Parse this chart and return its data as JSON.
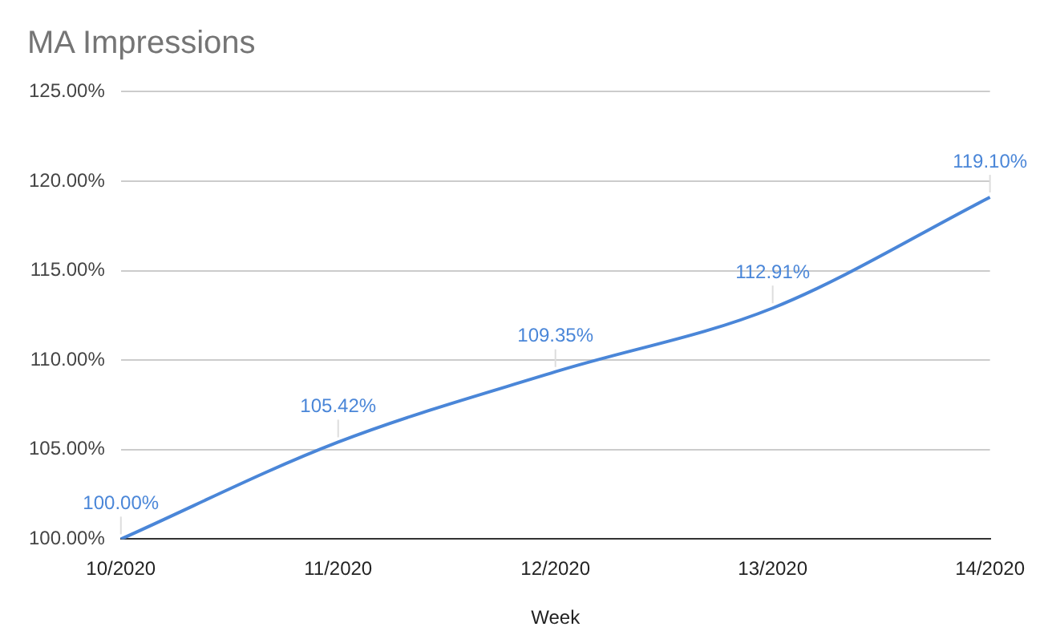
{
  "chart_data": {
    "type": "line",
    "title": "MA Impressions",
    "xlabel": "Week",
    "categories": [
      "10/2020",
      "11/2020",
      "12/2020",
      "13/2020",
      "14/2020"
    ],
    "series": [
      {
        "color": "#4a86d8",
        "values": [
          100,
          105.42,
          109.35,
          112.91,
          119.1
        ],
        "value_labels": [
          "100.00%",
          "105.42%",
          "109.35%",
          "112.91%",
          "119.10%"
        ]
      }
    ],
    "ylim": [
      100,
      125
    ],
    "yticks": [
      {
        "value": 100,
        "label": "100.00%"
      },
      {
        "value": 105,
        "label": "105.00%"
      },
      {
        "value": 110,
        "label": "110.00%"
      },
      {
        "value": 115,
        "label": "115.00%"
      },
      {
        "value": 120,
        "label": "120.00%"
      },
      {
        "value": 125,
        "label": "125.00%"
      }
    ],
    "grid": "y",
    "legend": false,
    "marker": "none",
    "line_style": "solid"
  }
}
